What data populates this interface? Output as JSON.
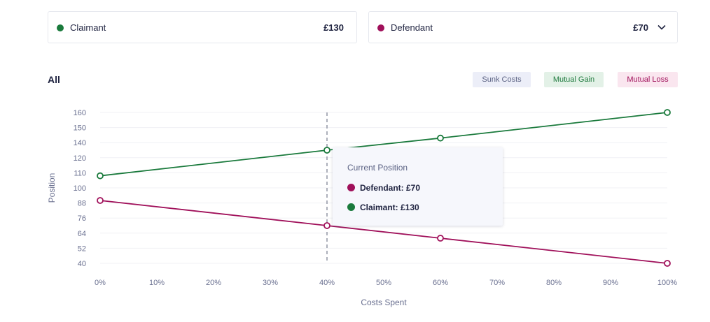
{
  "summary": {
    "claimant": {
      "label": "Claimant",
      "amount": "£130",
      "color": "#1a7a3c"
    },
    "defendant": {
      "label": "Defendant",
      "amount": "£70",
      "color": "#a0105a",
      "dropdown_icon": "chevron-down-icon"
    }
  },
  "filter": {
    "label": "All"
  },
  "legend": {
    "sunk": "Sunk Costs",
    "gain": "Mutual Gain",
    "loss": "Mutual Loss"
  },
  "tooltip": {
    "title": "Current Position",
    "defendant": "Defendant: £70",
    "claimant": "Claimant: £130"
  },
  "chart_data": {
    "type": "line",
    "xlabel": "Costs Spent",
    "ylabel": "Position",
    "x_ticks": [
      "0%",
      "10%",
      "20%",
      "30%",
      "40%",
      "50%",
      "60%",
      "70%",
      "80%",
      "90%",
      "100%"
    ],
    "y_ticks": [
      "40",
      "52",
      "64",
      "76",
      "88",
      "100",
      "110",
      "120",
      "140",
      "150",
      "160"
    ],
    "x": [
      0,
      40,
      60,
      100
    ],
    "series": [
      {
        "name": "Claimant",
        "color": "#1a7a3c",
        "values": [
          108,
          130,
          143,
          160
        ]
      },
      {
        "name": "Defendant",
        "color": "#a0105a",
        "values": [
          90,
          70,
          60,
          40
        ]
      }
    ],
    "current_position_x": 40,
    "grid": true
  }
}
